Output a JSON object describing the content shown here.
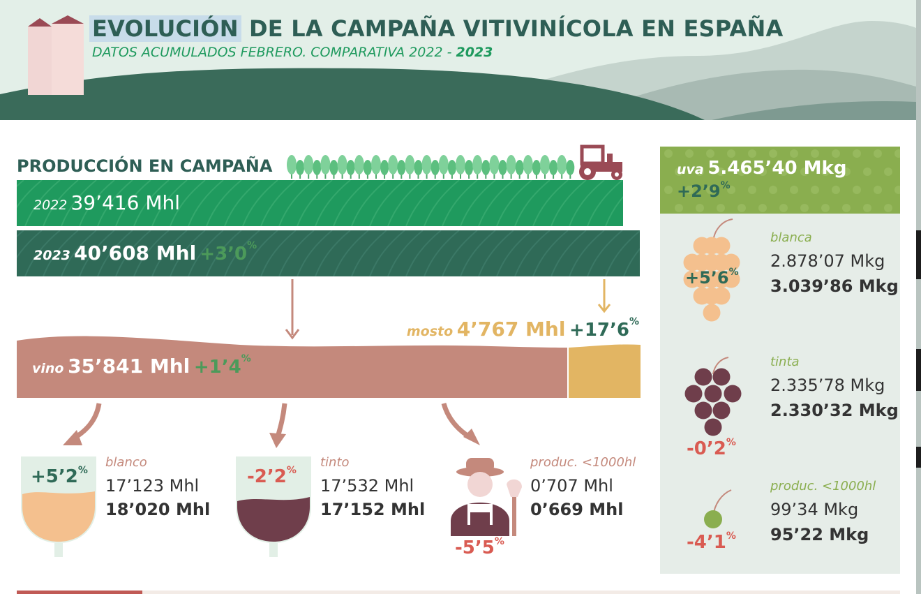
{
  "header": {
    "title_highlight": "EVOLUCIÓN",
    "title_rest": " DE LA CAMPAÑA VITIVINÍCOLA EN ESPAÑA",
    "subtitle_main": "DATOS ACUMULADOS FEBRERO. COMPARATIVA 2022 - ",
    "subtitle_bold": "2023"
  },
  "production": {
    "title": "PRODUCCIÓN EN CAMPAÑA",
    "y2022": {
      "year": "2022",
      "value": "39’416 Mhl"
    },
    "y2023": {
      "year": "2023",
      "value": "40’608 Mhl",
      "pct": "+3’0",
      "pct_unit": "%"
    }
  },
  "mosto": {
    "label": "mosto",
    "value": "4’767 Mhl",
    "pct": "+17’6",
    "pct_unit": "%"
  },
  "vino": {
    "label": "vino",
    "value": "35’841 Mhl",
    "pct": "+1’4",
    "pct_unit": "%"
  },
  "wine_types": [
    {
      "name": "blanco",
      "v2022": "17’123 Mhl",
      "v2023": "18’020 Mhl",
      "pct": "+5’2",
      "pct_unit": "%"
    },
    {
      "name": "tinto",
      "v2022": "17’532 Mhl",
      "v2023": "17’152 Mhl",
      "pct": "-2’2",
      "pct_unit": "%"
    },
    {
      "name": "produc. <1000hl",
      "v2022": "0’707 Mhl",
      "v2023": "0’669 Mhl",
      "pct": "-5’5",
      "pct_unit": "%"
    }
  ],
  "uva": {
    "label": "uva",
    "value": "5.465’40 Mkg",
    "pct": "+2’9",
    "pct_unit": "%"
  },
  "grapes": [
    {
      "name": "blanca",
      "v2022": "2.878’07 Mkg",
      "v2023": "3.039’86 Mkg",
      "pct": "+5’6",
      "pct_unit": "%"
    },
    {
      "name": "tinta",
      "v2022": "2.335’78 Mkg",
      "v2023": "2.330’32 Mkg",
      "pct": "-0’2",
      "pct_unit": "%"
    },
    {
      "name": "produc. <1000hl",
      "v2022": "99’34 Mkg",
      "v2023": "95’22 Mkg",
      "pct": "-4’1",
      "pct_unit": "%"
    }
  ],
  "colors": {
    "dark_green": "#2f6a57",
    "green": "#1f9a5e",
    "olive": "#8aae4f",
    "rose": "#c4897c",
    "gold": "#e2b563",
    "red_pct": "#d95b52",
    "light_peach": "#f4c08e",
    "burgundy": "#6f3e4b"
  }
}
